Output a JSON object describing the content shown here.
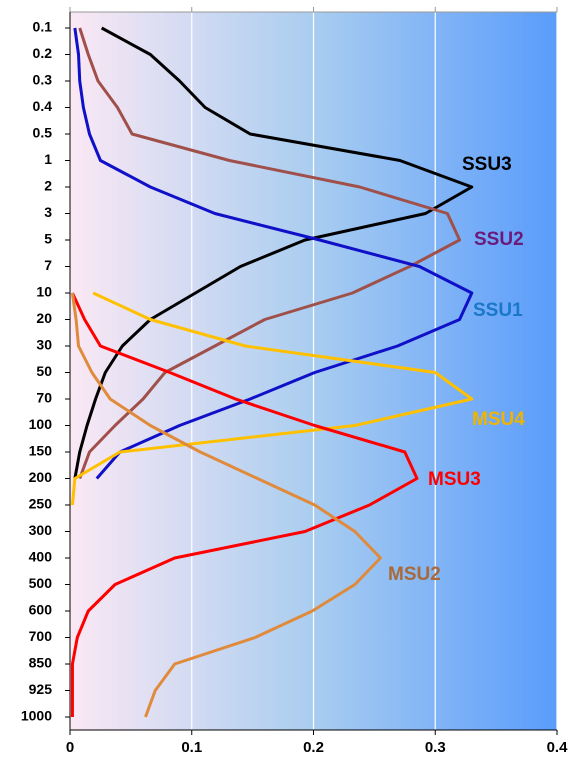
{
  "chart_data": {
    "type": "line",
    "categories": [
      "0.1",
      "0.2",
      "0.3",
      "0.4",
      "0.5",
      "1",
      "2",
      "3",
      "5",
      "7",
      "10",
      "20",
      "30",
      "50",
      "70",
      "100",
      "150",
      "200",
      "250",
      "300",
      "400",
      "500",
      "600",
      "700",
      "850",
      "925",
      "1000"
    ],
    "xlim": [
      0,
      0.4
    ],
    "xticks": [
      0,
      0.1,
      0.2,
      0.3,
      0.4
    ],
    "grid": true,
    "series": [
      {
        "name": "SSU3",
        "color": "#000000",
        "label_color": "#000000",
        "values": [
          0.026,
          0.066,
          0.09,
          0.111,
          0.148,
          0.271,
          0.33,
          0.292,
          0.193,
          0.14,
          0.103,
          0.066,
          0.043,
          0.029,
          0.021,
          0.014,
          0.008,
          0.004,
          null,
          null,
          null,
          null,
          null,
          null,
          null,
          null,
          null
        ]
      },
      {
        "name": "SSU2",
        "color": "#a0504a",
        "label_color": "#6a1a7a",
        "values": [
          0.008,
          0.015,
          0.023,
          0.039,
          0.051,
          0.131,
          0.238,
          0.31,
          0.32,
          0.279,
          0.232,
          0.16,
          0.119,
          0.078,
          0.06,
          0.037,
          0.016,
          0.008,
          null,
          null,
          null,
          null,
          null,
          null,
          null,
          null,
          null
        ]
      },
      {
        "name": "SSU1",
        "color": "#1010c8",
        "label_color": "#1a78c8",
        "values": [
          0.004,
          0.007,
          0.008,
          0.011,
          0.016,
          0.025,
          0.066,
          0.119,
          0.205,
          0.287,
          0.33,
          0.32,
          0.269,
          0.201,
          0.148,
          0.09,
          0.041,
          0.022,
          null,
          null,
          null,
          null,
          null,
          null,
          null,
          null,
          null
        ]
      },
      {
        "name": "MSU4",
        "color": "#ffc000",
        "label_color": "#f0b400",
        "values": [
          null,
          null,
          null,
          null,
          null,
          null,
          null,
          null,
          null,
          null,
          0.019,
          0.066,
          0.144,
          0.3,
          0.33,
          0.234,
          0.041,
          0.004,
          0.002,
          null,
          null,
          null,
          null,
          null,
          null,
          null,
          null
        ]
      },
      {
        "name": "MSU3",
        "color": "#ff0000",
        "label_color": "#ff0000",
        "values": [
          null,
          null,
          null,
          null,
          null,
          null,
          null,
          null,
          null,
          null,
          0.002,
          0.012,
          0.025,
          0.082,
          0.136,
          0.201,
          0.275,
          0.285,
          0.246,
          0.193,
          0.086,
          0.037,
          0.015,
          0.006,
          0.002,
          0.002,
          0.002
        ]
      },
      {
        "name": "MSU2",
        "color": "#e08a3c",
        "label_color": "#a86a3a",
        "values": [
          null,
          null,
          null,
          null,
          null,
          null,
          null,
          null,
          null,
          null,
          0.002,
          0.005,
          0.007,
          0.018,
          0.033,
          0.066,
          0.107,
          0.154,
          0.201,
          0.234,
          0.255,
          0.234,
          0.199,
          0.152,
          0.086,
          0.07,
          0.062
        ]
      }
    ]
  }
}
